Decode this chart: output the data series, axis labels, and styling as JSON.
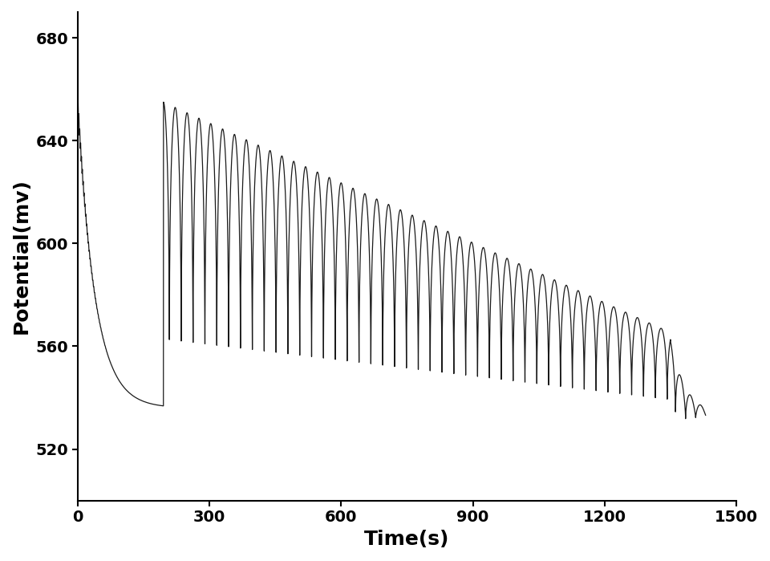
{
  "title": "",
  "xlabel": "Time(s)",
  "ylabel": "Potential(mv)",
  "xlim": [
    0,
    1500
  ],
  "ylim": [
    500,
    690
  ],
  "yticks": [
    520,
    560,
    600,
    640,
    680
  ],
  "xticks": [
    0,
    300,
    600,
    900,
    1200,
    1500
  ],
  "line_color": "#1a1a1a",
  "line_width": 0.9,
  "background_color": "#ffffff",
  "axes_background": "#ffffff",
  "initial_start_val": 655,
  "initial_end_time": 195,
  "initial_end_val": 536,
  "osc_start_time": 195,
  "osc_end_time": 1380,
  "osc_period": 27.0,
  "top_env_start": 655,
  "top_env_end": 563,
  "bottom_env_start": 530,
  "bottom_env_end": 530,
  "dip_sharpness": 8.0,
  "xlabel_fontsize": 18,
  "ylabel_fontsize": 18,
  "tick_fontsize": 14,
  "label_fontweight": "bold"
}
